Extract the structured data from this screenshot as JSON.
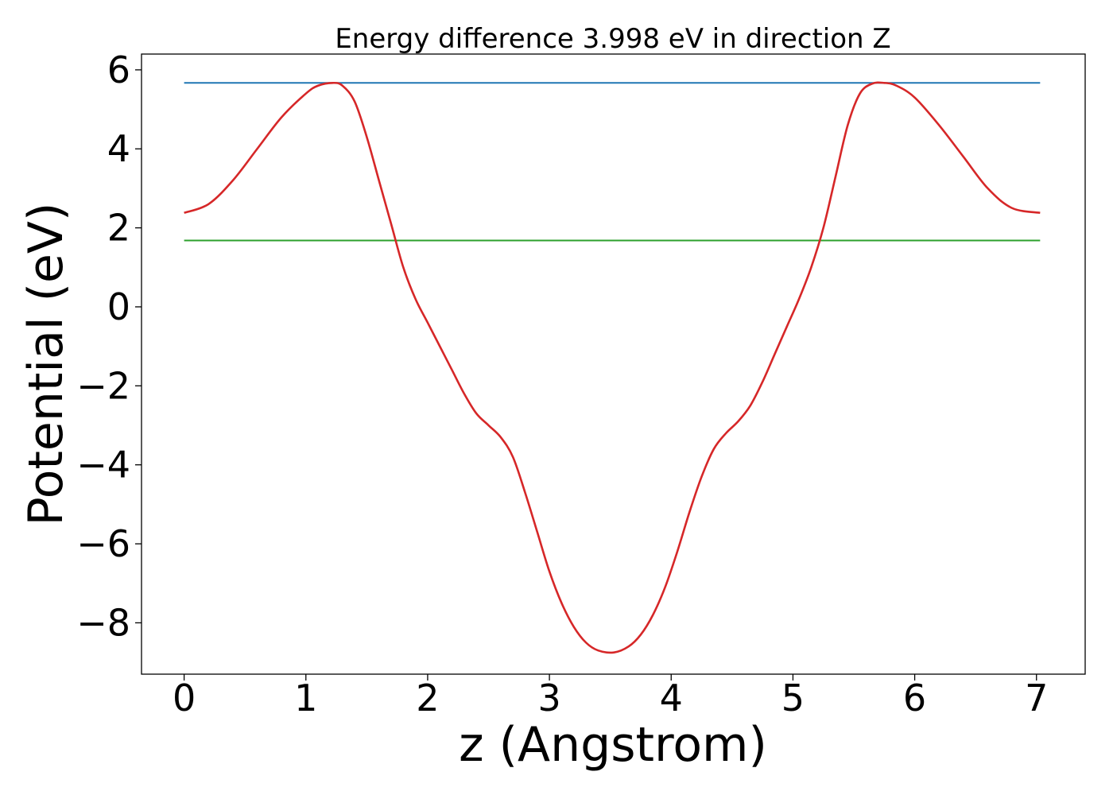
{
  "chart_data": {
    "type": "line",
    "title": "Energy difference 3.998 eV in direction Z",
    "xlabel": "z (Angstrom)",
    "ylabel": "Potential (eV)",
    "xlim": [
      -0.35,
      7.4
    ],
    "ylim": [
      -9.3,
      6.4
    ],
    "xticks": [
      0,
      1,
      2,
      3,
      4,
      5,
      6,
      7
    ],
    "xtick_labels": [
      "0",
      "1",
      "2",
      "3",
      "4",
      "5",
      "6",
      "7"
    ],
    "yticks": [
      6,
      4,
      2,
      0,
      -2,
      -4,
      -6,
      -8
    ],
    "ytick_labels": [
      "6",
      "4",
      "2",
      "0",
      "−2",
      "−4",
      "−6",
      "−8"
    ],
    "grid": false,
    "series": [
      {
        "color": "#1f77b4",
        "x": [
          0,
          7.03
        ],
        "y": [
          5.67,
          5.67
        ]
      },
      {
        "color": "#2ca02c",
        "x": [
          0,
          7.03
        ],
        "y": [
          1.68,
          1.68
        ]
      },
      {
        "color": "#d62728",
        "x": [
          0,
          0.2,
          0.4,
          0.6,
          0.8,
          1.0,
          1.1,
          1.22,
          1.3,
          1.4,
          1.5,
          1.6,
          1.7,
          1.8,
          1.9,
          2.0,
          2.1,
          2.2,
          2.3,
          2.4,
          2.5,
          2.6,
          2.7,
          2.8,
          2.9,
          3.0,
          3.1,
          3.2,
          3.3,
          3.4,
          3.53,
          3.65,
          3.75,
          3.85,
          3.95,
          4.05,
          4.15,
          4.25,
          4.35,
          4.45,
          4.55,
          4.65,
          4.75,
          4.85,
          4.95,
          5.05,
          5.15,
          5.25,
          5.35,
          5.45,
          5.55,
          5.65,
          5.75,
          5.85,
          6.0,
          6.2,
          6.4,
          6.6,
          6.8,
          7.03
        ],
        "y": [
          2.38,
          2.6,
          3.2,
          4.0,
          4.8,
          5.4,
          5.6,
          5.67,
          5.6,
          5.2,
          4.3,
          3.2,
          2.1,
          1.0,
          0.2,
          -0.4,
          -1.0,
          -1.6,
          -2.2,
          -2.7,
          -3.0,
          -3.3,
          -3.8,
          -4.7,
          -5.7,
          -6.7,
          -7.5,
          -8.1,
          -8.5,
          -8.7,
          -8.75,
          -8.6,
          -8.3,
          -7.8,
          -7.1,
          -6.2,
          -5.2,
          -4.3,
          -3.6,
          -3.2,
          -2.9,
          -2.5,
          -1.9,
          -1.2,
          -0.5,
          0.2,
          1.0,
          2.0,
          3.3,
          4.6,
          5.4,
          5.65,
          5.67,
          5.6,
          5.3,
          4.6,
          3.8,
          3.0,
          2.5,
          2.38
        ]
      }
    ]
  }
}
